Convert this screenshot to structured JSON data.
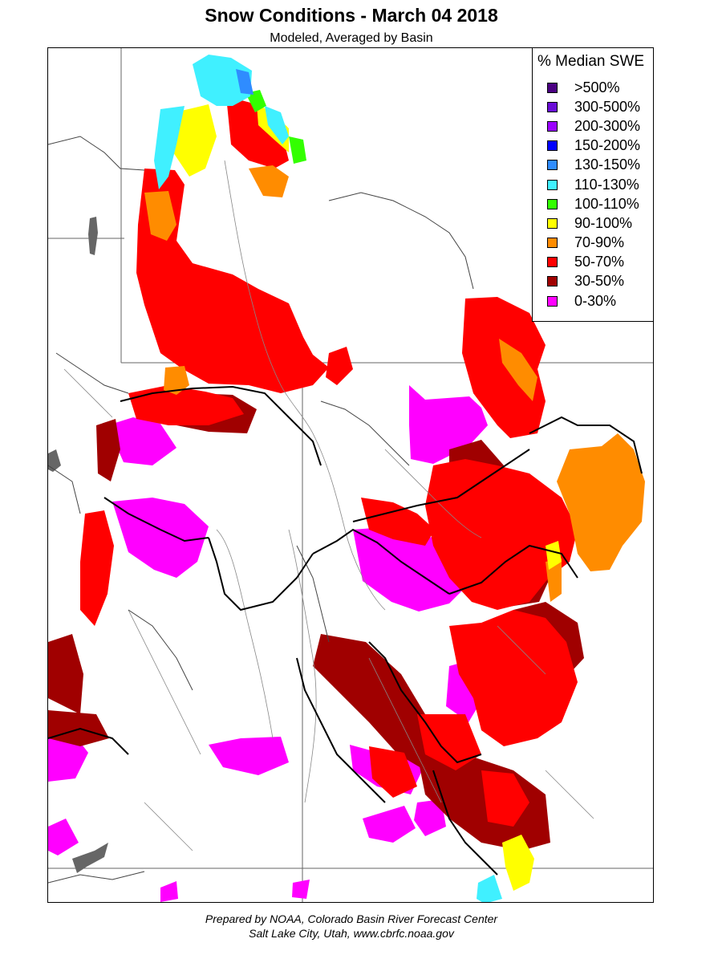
{
  "header": {
    "title": "Snow Conditions - March 04 2018",
    "subtitle": "Modeled, Averaged by Basin"
  },
  "legend": {
    "title": "% Median SWE",
    "items": [
      {
        "label": ">500%",
        "color": "#4b0082"
      },
      {
        "label": "300-500%",
        "color": "#6a0dd6"
      },
      {
        "label": "200-300%",
        "color": "#9b00ff"
      },
      {
        "label": "150-200%",
        "color": "#0000ff"
      },
      {
        "label": "130-150%",
        "color": "#2f8cff"
      },
      {
        "label": "110-130%",
        "color": "#40f0ff"
      },
      {
        "label": "100-110%",
        "color": "#33ff00"
      },
      {
        "label": "90-100%",
        "color": "#ffff00"
      },
      {
        "label": "70-90%",
        "color": "#ff8c00"
      },
      {
        "label": "50-70%",
        "color": "#ff0000"
      },
      {
        "label": "30-50%",
        "color": "#a00000"
      },
      {
        "label": "0-30%",
        "color": "#ff00ff"
      }
    ]
  },
  "footer": {
    "line1": "Prepared by NOAA, Colorado Basin River Forecast Center",
    "line2": "Salt Lake City, Utah, www.cbrfc.noaa.gov"
  }
}
